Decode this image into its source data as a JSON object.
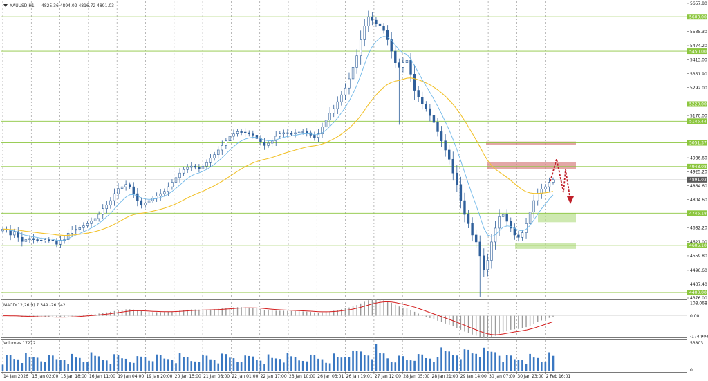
{
  "chart_data": [
    {
      "type": "candlestick",
      "pane": "price",
      "header": {
        "symbol": "XAUUSD,H1",
        "ohlc": "4825.36 4894.02 4816.72 4891.03"
      },
      "y_ticks": [
        "5657.80",
        "5535.30",
        "5474.20",
        "5413.00",
        "5351.90",
        "5292.00",
        "5170.00",
        "4986.60",
        "4925.20",
        "4864.60",
        "4804.60",
        "4682.20",
        "4621.00",
        "4559.80",
        "4496.60",
        "4437.40",
        "4376.00"
      ],
      "ylim": [
        4376.0,
        5657.8
      ],
      "x_ticks": [
        "14 Jan 2026",
        "15 Jan 02:00",
        "15 Jan 18:00",
        "16 Jan 11:00",
        "19 Jan 04:00",
        "19 Jan 20:00",
        "20 Jan 15:00",
        "21 Jan 08:00",
        "22 Jan 01:00",
        "22 Jan 17:00",
        "23 Jan 10:00",
        "26 Jan 03:01",
        "26 Jan 19:01",
        "27 Jan 12:00",
        "28 Jan 05:00",
        "28 Jan 21:00",
        "29 Jan 14:00",
        "30 Jan 07:00",
        "30 Jan 23:00",
        "2 Feb 16:01"
      ],
      "levels": [
        {
          "label": "5600.00",
          "value": 5600
        },
        {
          "label": "5450.00",
          "value": 5450
        },
        {
          "label": "5220.00",
          "value": 5220
        },
        {
          "label": "5145.44",
          "value": 5145.44
        },
        {
          "label": "5051.37",
          "value": 5051.37
        },
        {
          "label": "4948.08",
          "value": 4948.08
        },
        {
          "label": "4745.18",
          "value": 4745.18
        },
        {
          "label": "4605.10",
          "value": 4605.1
        },
        {
          "label": "4400.00",
          "value": 4400
        }
      ],
      "current_price": {
        "label": "4891.03",
        "value": 4891.03
      },
      "resistance_zones": [
        [
          5043,
          5057
        ],
        [
          4938,
          4968
        ]
      ],
      "support_zones": [
        [
          4706,
          4745
        ],
        [
          4590,
          4615
        ]
      ],
      "path": [
        4676,
        4672,
        4650,
        4665,
        4640,
        4622,
        4630,
        4635,
        4630,
        4628,
        4625,
        4630,
        4628,
        4625,
        4610,
        4628,
        4630,
        4658,
        4672,
        4675,
        4682,
        4690,
        4700,
        4712,
        4722,
        4740,
        4765,
        4780,
        4800,
        4830,
        4852,
        4860,
        4870,
        4860,
        4830,
        4800,
        4780,
        4790,
        4800,
        4810,
        4820,
        4830,
        4840,
        4860,
        4880,
        4900,
        4920,
        4935,
        4945,
        4950,
        4945,
        4938,
        4950,
        4965,
        4985,
        5000,
        5020,
        5040,
        5060,
        5080,
        5090,
        5100,
        5098,
        5095,
        5090,
        5085,
        5070,
        5055,
        5040,
        5050,
        5060,
        5080,
        5090,
        5095,
        5092,
        5090,
        5095,
        5098,
        5100,
        5095,
        5085,
        5075,
        5090,
        5120,
        5150,
        5180,
        5200,
        5230,
        5260,
        5290,
        5330,
        5380,
        5430,
        5500,
        5560,
        5600,
        5585,
        5570,
        5560,
        5540,
        5500,
        5450,
        5400,
        5380,
        5400,
        5410,
        5350,
        5280,
        5250,
        5220,
        5200,
        5170,
        5140,
        5100,
        5060,
        5020,
        4980,
        4920,
        4870,
        4800,
        4740,
        4700,
        4650,
        4620,
        4560,
        4500,
        4540,
        4620,
        4680,
        4730,
        4740,
        4710,
        4680,
        4650,
        4640,
        4660,
        4700,
        4750,
        4800,
        4830,
        4850,
        4860,
        4880,
        4891
      ],
      "ma_fast_color": "#6fb7e8",
      "ma_slow_color": "#f2c22c",
      "bull_color": "#2f5f9a",
      "bear_color": "#2f5f9a",
      "level_color": "#8cc63f",
      "resistance_color": "#d98a8a",
      "support_color": "#b9df8e",
      "forecast_color": "#c0202a"
    },
    {
      "type": "histogram",
      "pane": "macd",
      "header": "MACD(12,26,9) 7.349 -26.342",
      "y_ticks": [
        "108.068",
        "0.00",
        "-174.904"
      ],
      "ylim": [
        -180,
        110
      ],
      "signal_color": "#d42020",
      "hist_color": "#9a9a9a"
    },
    {
      "type": "bar",
      "pane": "volume",
      "header": "Volumes 17272",
      "y_ticks": [
        "53803",
        "0"
      ],
      "ylim": [
        0,
        53803
      ],
      "bar_color": "#3a78c2"
    }
  ]
}
